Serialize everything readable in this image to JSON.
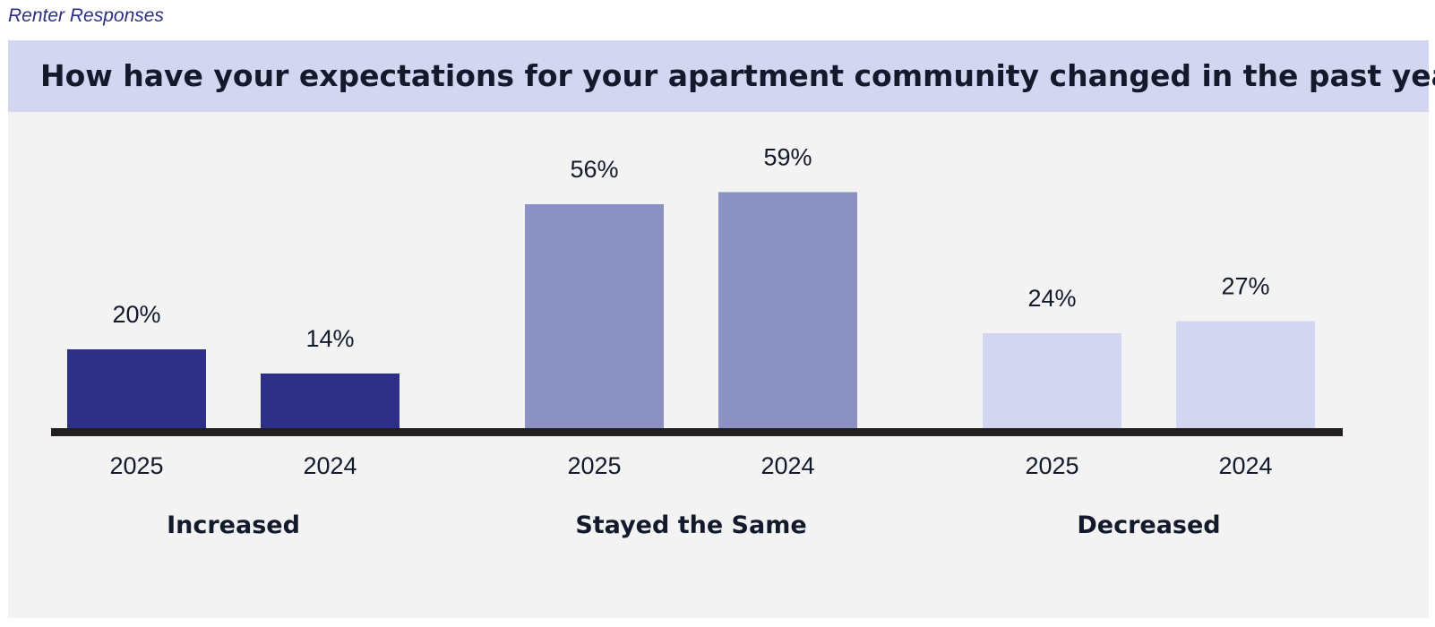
{
  "header": {
    "eyebrow": "Renter Responses",
    "title": "How have your expectations for your apartment community changed in the past year?"
  },
  "colors": {
    "header_band": "#d3d6f1",
    "chart_background": "#f3f3f3",
    "baseline": "#231f20",
    "increased": "#2e3087",
    "stayed_the_same": "#8b92c3",
    "decreased": "#d3d6f1"
  },
  "chart_data": {
    "type": "bar",
    "title": "How have your expectations for your apartment community changed in the past year?",
    "xlabel": "",
    "ylabel": "",
    "groups": [
      "Increased",
      "Stayed the Same",
      "Decreased"
    ],
    "categories": [
      "2025",
      "2024"
    ],
    "values": [
      [
        20,
        14
      ],
      [
        56,
        59
      ],
      [
        24,
        27
      ]
    ],
    "value_labels": [
      [
        "20%",
        "14%"
      ],
      [
        "56%",
        "59%"
      ],
      [
        "24%",
        "27%"
      ]
    ],
    "unit": "%",
    "ylim": [
      0,
      100
    ],
    "grid": false,
    "legend": "none"
  }
}
